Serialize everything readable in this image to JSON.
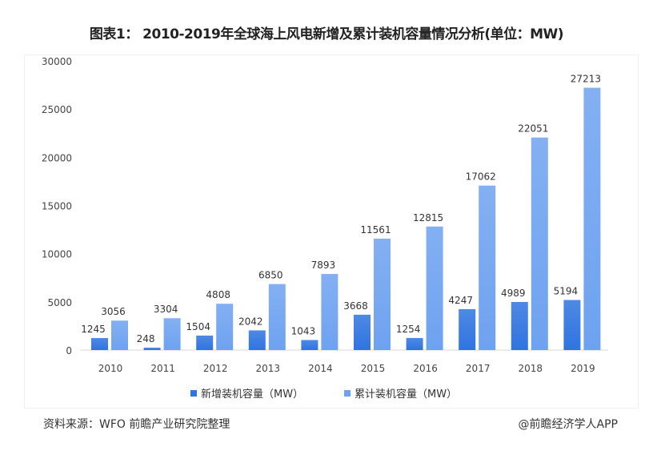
{
  "title": "图表1： 2010-2019年全球海上风电新增及累计装机容量情况分析(单位：MW)",
  "source": "资料来源：WFO 前瞻产业研究院整理",
  "brand": "@前瞻经济学人APP",
  "chart_data": {
    "type": "bar",
    "categories": [
      "2010",
      "2011",
      "2012",
      "2013",
      "2014",
      "2015",
      "2016",
      "2017",
      "2018",
      "2019"
    ],
    "series": [
      {
        "name": "新增装机容量（MW）",
        "color": "#2f74e0",
        "values": [
          1245,
          248,
          1504,
          2042,
          1043,
          3668,
          1254,
          4247,
          4989,
          5194
        ]
      },
      {
        "name": "累计装机容量（MW）",
        "color": "#6ea2f0",
        "values": [
          3056,
          3304,
          4808,
          6850,
          7893,
          11561,
          12815,
          17062,
          22051,
          27213
        ]
      }
    ],
    "yticks": [
      0,
      5000,
      10000,
      15000,
      20000,
      25000,
      30000
    ],
    "ylim": [
      0,
      30000
    ],
    "legend": "bottom",
    "grid": false
  }
}
